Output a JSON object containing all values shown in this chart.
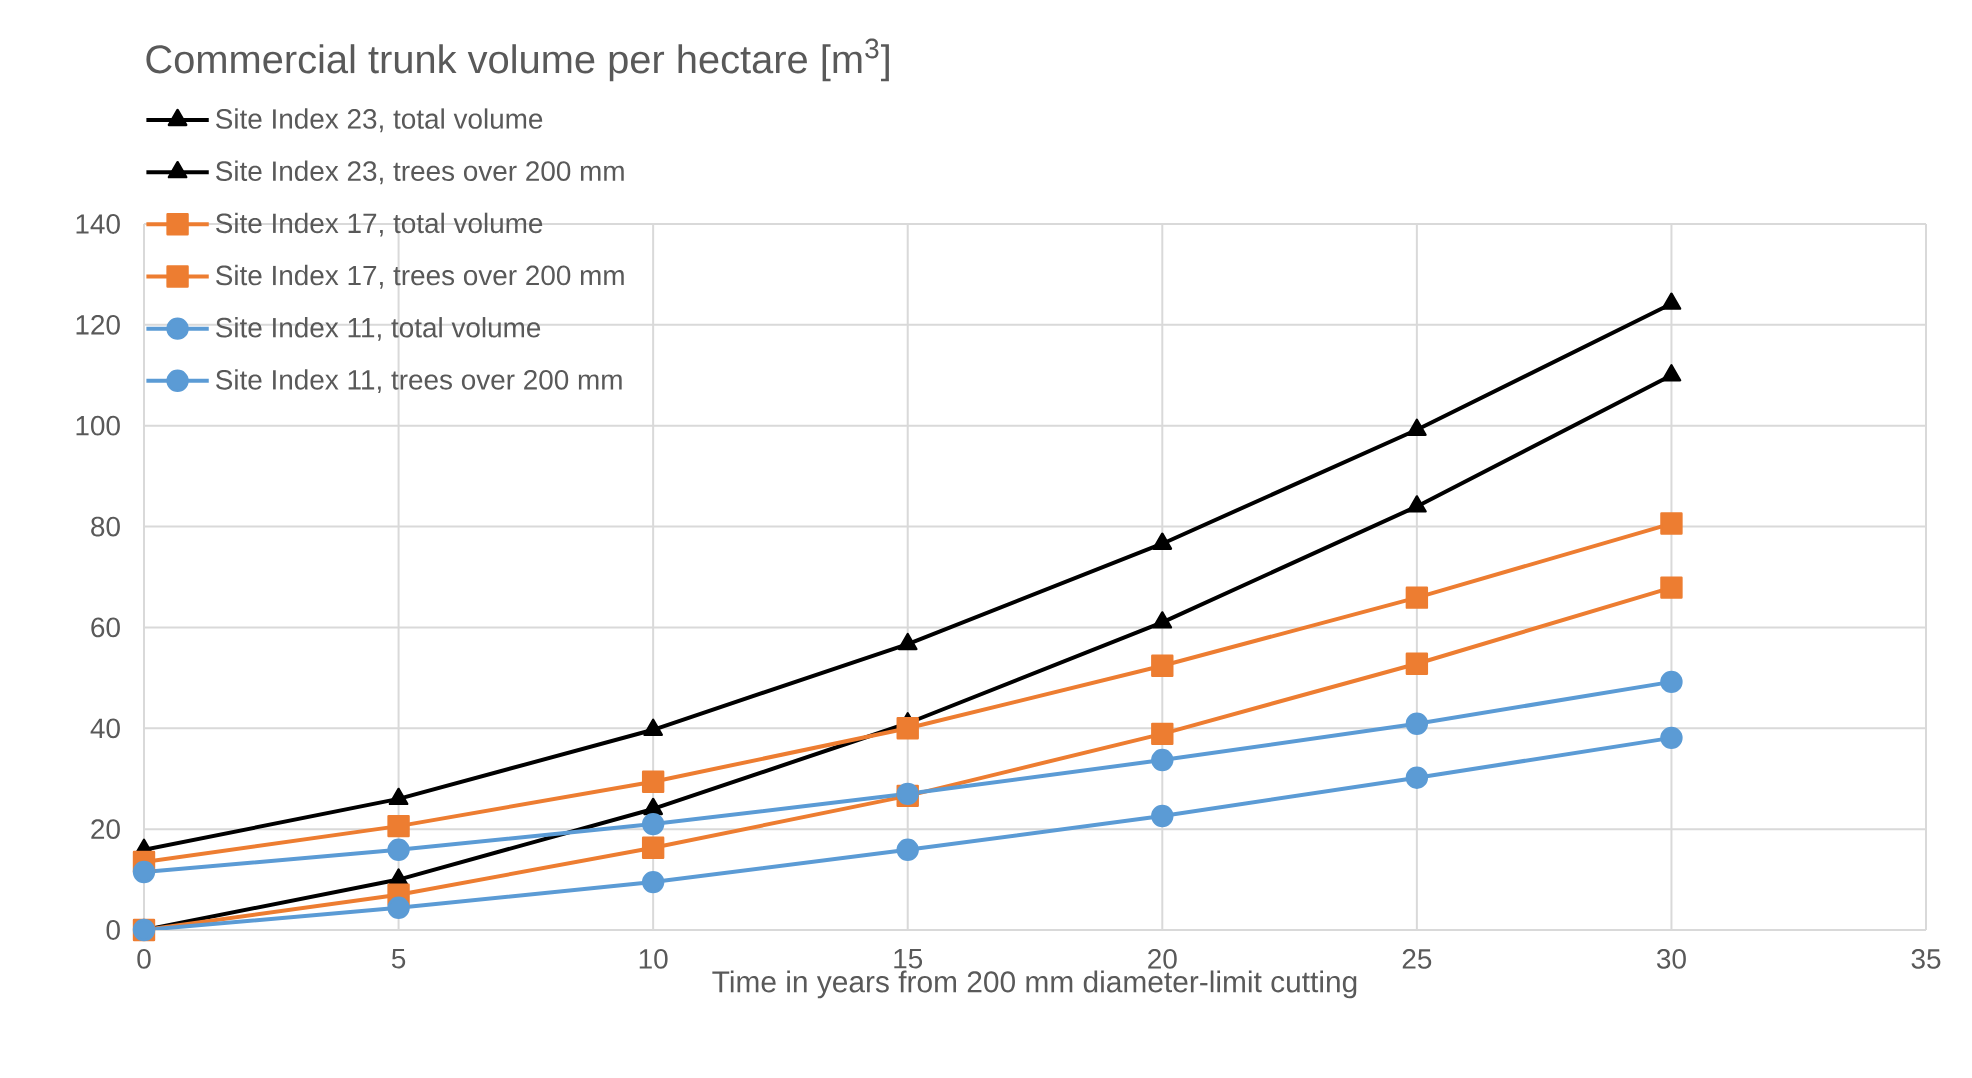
{
  "chart_data": {
    "type": "line",
    "title": "Commercial trunk volume per hectare [m$^{3}$]",
    "xlabel": "Time in years from 200 mm diameter-limit cutting",
    "x": [
      0,
      5,
      10,
      15,
      20,
      25,
      30
    ],
    "series": [
      {
        "name": "Site Index 23, total volume",
        "color": "#000000",
        "marker": "triangle",
        "values": [
          15.9,
          26,
          39.7,
          56.7,
          76.6,
          99.2,
          124.2
        ]
      },
      {
        "name": "Site Index 23, trees over 200 mm",
        "color": "#000000",
        "marker": "triangle",
        "values": [
          0,
          10,
          24,
          41,
          61,
          84,
          110
        ]
      },
      {
        "name": "Site Index 17, total volume",
        "color": "#ed7d31",
        "marker": "square",
        "values": [
          13.5,
          20.6,
          29.4,
          40,
          52.4,
          65.9,
          80.6
        ]
      },
      {
        "name": "Site Index 17, trees over 200 mm",
        "color": "#ed7d31",
        "marker": "square",
        "values": [
          0,
          7,
          16.3,
          26.6,
          38.9,
          52.8,
          67.9
        ]
      },
      {
        "name": "Site Index 11, total volume",
        "color": "#5b9bd5",
        "marker": "circle",
        "values": [
          11.5,
          15.9,
          21,
          27,
          33.7,
          40.9,
          49.2
        ]
      },
      {
        "name": "Site Index 11, trees over 200 mm",
        "color": "#5b9bd5",
        "marker": "circle",
        "values": [
          0,
          4.4,
          9.5,
          15.9,
          22.6,
          30.2,
          38.1
        ]
      }
    ],
    "xlim": [
      0,
      35
    ],
    "xticks": [
      0,
      5,
      10,
      15,
      20,
      25,
      30,
      35
    ],
    "ylim": [
      0,
      140
    ],
    "yticks": [
      0,
      20,
      40,
      60,
      80,
      100,
      120,
      140
    ],
    "grid": true,
    "legend": "top left",
    "line_style": "solid"
  }
}
